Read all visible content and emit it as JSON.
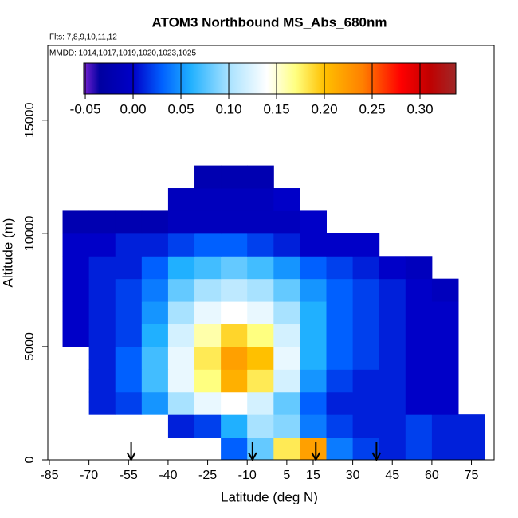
{
  "chart_data": {
    "type": "heatmap",
    "title": "ATOM3 Northbound MS_Abs_680nm",
    "subtitle": "Flts: 7,8,9,10,11,12",
    "annotation": "MMDD: 1014,1017,1019,1020,1023,1025",
    "x_label": "Latitude (deg N)",
    "y_label": "Altitude (m)",
    "xlim": [
      -85.6,
      83.6
    ],
    "ylim": [
      0,
      18300
    ],
    "xticks": [
      -85,
      -70,
      -55,
      -40,
      -25,
      -10,
      5,
      15,
      30,
      45,
      60,
      75
    ],
    "yticks": [
      0,
      5000,
      10000,
      15000
    ],
    "x_edges": [
      -80,
      -70,
      -60,
      -50,
      -40,
      -30,
      -20,
      -10,
      0,
      10,
      20,
      30,
      40,
      50,
      60,
      70,
      80
    ],
    "y_edges": [
      0,
      1000,
      2000,
      3000,
      4000,
      5000,
      6000,
      7000,
      8000,
      9000,
      10000,
      11000,
      12000,
      13000
    ],
    "z": [
      [
        null,
        null,
        null,
        null,
        null,
        null,
        0.03,
        0.08,
        0.18,
        0.22,
        0.04,
        0.02,
        0.01,
        0.02,
        0.01,
        0.01
      ],
      [
        null,
        null,
        null,
        null,
        0.01,
        0.02,
        0.06,
        0.1,
        0.09,
        0.04,
        0.02,
        0.01,
        0.01,
        0.02,
        0.01,
        0.01
      ],
      [
        null,
        0.01,
        0.02,
        0.05,
        0.1,
        0.13,
        0.14,
        0.12,
        0.08,
        0.03,
        0.01,
        0.01,
        0.01,
        0.0,
        0.0,
        null
      ],
      [
        null,
        0.01,
        0.03,
        0.07,
        0.13,
        0.17,
        0.21,
        0.18,
        0.12,
        0.05,
        0.02,
        0.01,
        0.01,
        0.0,
        0.0,
        null
      ],
      [
        null,
        0.01,
        0.03,
        0.07,
        0.13,
        0.18,
        0.22,
        0.2,
        0.13,
        0.06,
        0.03,
        0.02,
        0.01,
        0.0,
        0.0,
        null
      ],
      [
        0.0,
        0.01,
        0.02,
        0.06,
        0.12,
        0.16,
        0.19,
        0.17,
        0.12,
        0.06,
        0.03,
        0.02,
        0.01,
        0.0,
        0.0,
        null
      ],
      [
        0.0,
        0.01,
        0.02,
        0.05,
        0.1,
        0.13,
        0.14,
        0.13,
        0.1,
        0.06,
        0.03,
        0.02,
        0.01,
        0.0,
        0.0,
        null
      ],
      [
        0.0,
        0.01,
        0.02,
        0.04,
        0.08,
        0.1,
        0.11,
        0.1,
        0.08,
        0.05,
        0.03,
        0.02,
        0.01,
        0.0,
        -0.01,
        null
      ],
      [
        0.0,
        0.01,
        0.01,
        0.03,
        0.06,
        0.07,
        0.08,
        0.07,
        0.05,
        0.03,
        0.02,
        0.01,
        0.0,
        -0.01,
        null,
        null
      ],
      [
        0.0,
        0.0,
        0.01,
        0.01,
        0.02,
        0.03,
        0.03,
        0.02,
        0.01,
        0.0,
        0.0,
        0.0,
        null,
        null,
        null,
        null
      ],
      [
        -0.02,
        -0.02,
        -0.02,
        -0.02,
        -0.01,
        -0.01,
        -0.01,
        -0.01,
        -0.01,
        0.0,
        null,
        null,
        null,
        null,
        null,
        null
      ],
      [
        null,
        null,
        null,
        null,
        -0.01,
        -0.01,
        -0.01,
        -0.01,
        0.0,
        null,
        null,
        null,
        null,
        null,
        null,
        null
      ],
      [
        null,
        null,
        null,
        null,
        null,
        -0.02,
        -0.02,
        -0.02,
        null,
        null,
        null,
        null,
        null,
        null,
        null,
        null
      ]
    ],
    "zlim": [
      -0.0517,
      0.3375
    ],
    "zticks": [
      -0.05,
      {
        "value": 0,
        "label": "0.00"
      },
      0.05,
      {
        "value": 0.1,
        "label": "0.10"
      },
      0.15,
      {
        "value": 0.2,
        "label": "0.20"
      },
      0.25,
      {
        "value": 0.3,
        "label": "0.30"
      }
    ],
    "colorscale": [
      [
        -0.0517,
        "#7a22d4"
      ],
      [
        -0.035,
        "#0000a0"
      ],
      [
        0.0,
        "#0000c8"
      ],
      [
        0.03,
        "#0060ff"
      ],
      [
        0.06,
        "#20b0ff"
      ],
      [
        0.1,
        "#a8e2ff"
      ],
      [
        0.14,
        "#ffffff"
      ],
      [
        0.17,
        "#ffff80"
      ],
      [
        0.2,
        "#ffc000"
      ],
      [
        0.24,
        "#ff8000"
      ],
      [
        0.28,
        "#ff0000"
      ],
      [
        0.31,
        "#c00000"
      ],
      [
        0.3375,
        "#a02828"
      ]
    ],
    "arrow_lat": [
      -54,
      -8,
      16,
      39
    ]
  }
}
